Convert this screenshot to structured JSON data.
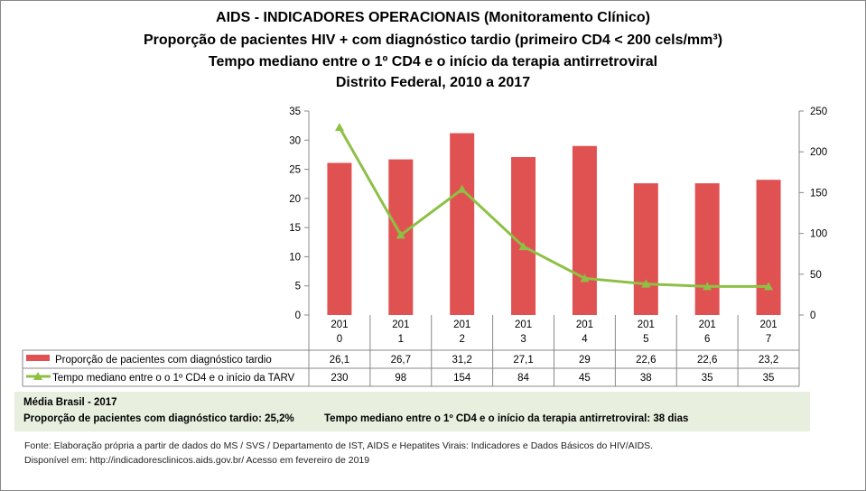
{
  "titles": [
    "AIDS - INDICADORES OPERACIONAIS (Monitoramento Clínico)",
    "Proporção de pacientes HIV + com diagnóstico tardio (primeiro CD4 < 200 cels/mm³)",
    "Tempo mediano entre o 1º CD4 e o início da terapia antirretroviral",
    "Distrito Federal, 2010 a 2017"
  ],
  "chart_data": {
    "type": "bar+line",
    "categories": [
      "2010",
      "2011",
      "2012",
      "2013",
      "2014",
      "2015",
      "2016",
      "2017"
    ],
    "category_labels": [
      [
        "201",
        "0"
      ],
      [
        "201",
        "1"
      ],
      [
        "201",
        "2"
      ],
      [
        "201",
        "3"
      ],
      [
        "201",
        "4"
      ],
      [
        "201",
        "5"
      ],
      [
        "201",
        "6"
      ],
      [
        "201",
        "7"
      ]
    ],
    "series": [
      {
        "name": "Proporção de pacientes com diagnóstico tardio",
        "type": "bar",
        "axis": "left",
        "color": "#e05252",
        "values": [
          26.1,
          26.7,
          31.2,
          27.1,
          29,
          22.6,
          22.6,
          23.2
        ],
        "labels": [
          "26,1",
          "26,7",
          "31,2",
          "27,1",
          "29",
          "22,6",
          "22,6",
          "23,2"
        ]
      },
      {
        "name": "Tempo mediano entre o o 1º CD4 e o início da TARV",
        "type": "line",
        "marker": "triangle",
        "axis": "right",
        "color": "#8dc044",
        "values": [
          230,
          98,
          154,
          84,
          45,
          38,
          35,
          35
        ],
        "labels": [
          "230",
          "98",
          "154",
          "84",
          "45",
          "38",
          "35",
          "35"
        ]
      }
    ],
    "ylim_left": [
      0,
      35
    ],
    "yticks_left": [
      0,
      5,
      10,
      15,
      20,
      25,
      30,
      35
    ],
    "ylim_right": [
      0,
      250
    ],
    "yticks_right": [
      0,
      50,
      100,
      150,
      200,
      250
    ],
    "grid": false,
    "legend": "data-table below"
  },
  "media": {
    "heading": "Média Brasil - 2017",
    "prop": "Proporção de pacientes com diagnóstico  tardio: 25,2%",
    "tempo": "Tempo mediano entre o 1º CD4 e o início da terapia antirretroviral: 38 dias"
  },
  "fonte": [
    "Fonte: Elaboração própria a partir de dados do  MS / SVS / Departamento de IST, AIDS e Hepatites Virais: Indicadores e Dados Básicos do HIV/AIDS.",
    "Disponível em: http://indicadoresclinicos.aids.gov.br/ Acesso em fevereiro de 2019"
  ]
}
